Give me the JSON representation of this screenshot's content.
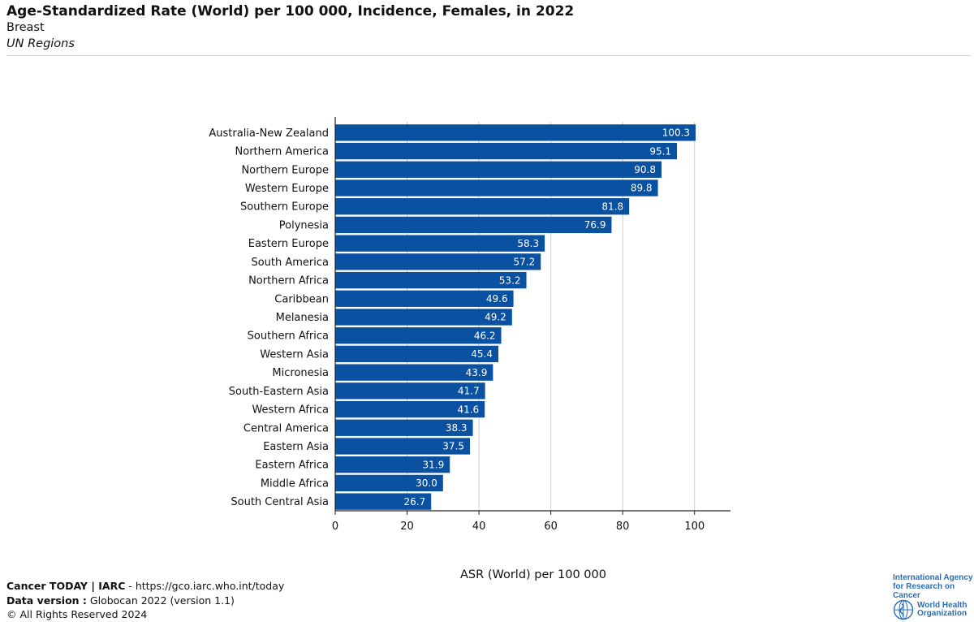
{
  "header": {
    "title": "Age-Standardized Rate (World) per 100 000, Incidence, Females, in 2022",
    "subtitle": "Breast",
    "region": "UN Regions"
  },
  "chart_data": {
    "type": "bar",
    "orientation": "horizontal",
    "categories": [
      "Australia-New Zealand",
      "Northern America",
      "Northern Europe",
      "Western Europe",
      "Southern Europe",
      "Polynesia",
      "Eastern Europe",
      "South America",
      "Northern Africa",
      "Caribbean",
      "Melanesia",
      "Southern Africa",
      "Western Asia",
      "Micronesia",
      "South-Eastern Asia",
      "Western Africa",
      "Central America",
      "Eastern Asia",
      "Eastern Africa",
      "Middle Africa",
      "South Central Asia"
    ],
    "values": [
      100.3,
      95.1,
      90.8,
      89.8,
      81.8,
      76.9,
      58.3,
      57.2,
      53.2,
      49.6,
      49.2,
      46.2,
      45.4,
      43.9,
      41.7,
      41.6,
      38.3,
      37.5,
      31.9,
      30.0,
      26.7
    ],
    "value_labels": [
      "100.3",
      "95.1",
      "90.8",
      "89.8",
      "81.8",
      "76.9",
      "58.3",
      "57.2",
      "53.2",
      "49.6",
      "49.2",
      "46.2",
      "45.4",
      "43.9",
      "41.7",
      "41.6",
      "38.3",
      "37.5",
      "31.9",
      "30.0",
      "26.7"
    ],
    "xlabel": "ASR (World) per 100 000",
    "ylabel": "",
    "xlim": [
      0,
      110
    ],
    "xticks": [
      0,
      20,
      40,
      60,
      80,
      100
    ],
    "xtick_labels": [
      "0",
      "20",
      "40",
      "60",
      "80",
      "100"
    ],
    "grid": "vertical",
    "bar_color": "#0a52a1",
    "label_color": "#ffffff"
  },
  "footer": {
    "brand": "Cancer TODAY | IARC",
    "url_text": " - https://gco.iarc.who.int/today",
    "data_version_label": "Data version :",
    "data_version_value": " Globocan 2022 (version 1.1)",
    "copyright": "© All Rights Reserved 2024"
  },
  "logos": {
    "iarc_line1": "International Agency",
    "iarc_line2": "for Research on Cancer",
    "who_line1": "World Health",
    "who_line2": "Organization",
    "color": "#2a6fb6"
  }
}
